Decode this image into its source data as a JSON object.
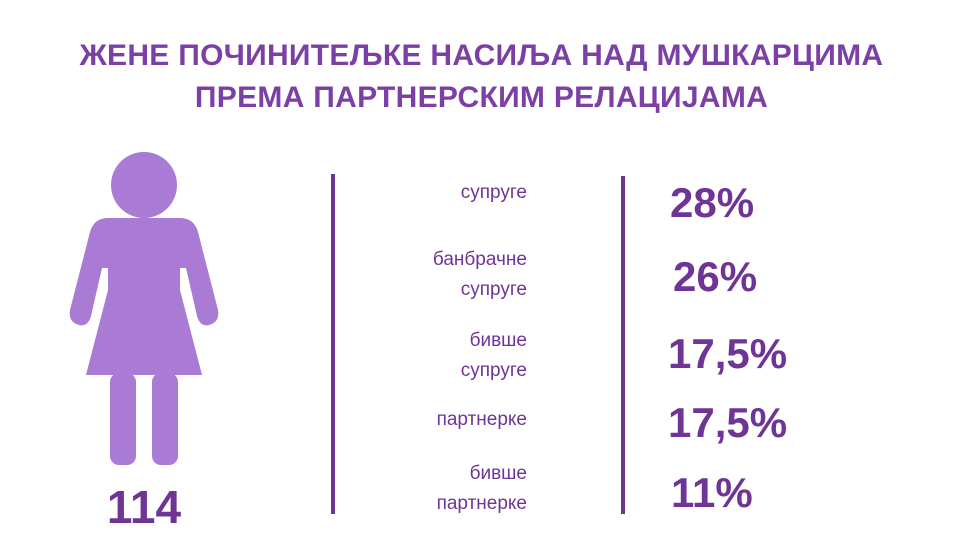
{
  "title": {
    "line1": "ЖЕНЕ ПОЧИНИТЕЉКЕ НАСИЉА НАД МУШКАРЦИМА",
    "line2": "ПРЕМА ПАРТНЕРСКИМ РЕЛАЦИЈАМА"
  },
  "figure": {
    "icon": "woman-icon",
    "count": "114",
    "color": "#a97bd4"
  },
  "colors": {
    "title": "#7b3fa5",
    "text": "#6e3596",
    "figure": "#a97bd4"
  },
  "chart_data": {
    "type": "table",
    "title": "ЖЕНЕ ПОЧИНИТЕЉКЕ НАСИЉА НАД МУШКАРЦИМА ПРЕМА ПАРТНЕРСКИМ РЕЛАЦИЈАМА",
    "total": 114,
    "categories": [
      [
        "супруге"
      ],
      [
        "банбрачне",
        "супруге"
      ],
      [
        "бивше",
        "супруге"
      ],
      [
        "партнерке"
      ],
      [
        "бивше",
        "партнерке"
      ]
    ],
    "values": [
      28,
      26,
      17.5,
      17.5,
      11
    ],
    "labels": [
      "28%",
      "26%",
      "17,5%",
      "17,5%",
      "11%"
    ]
  }
}
